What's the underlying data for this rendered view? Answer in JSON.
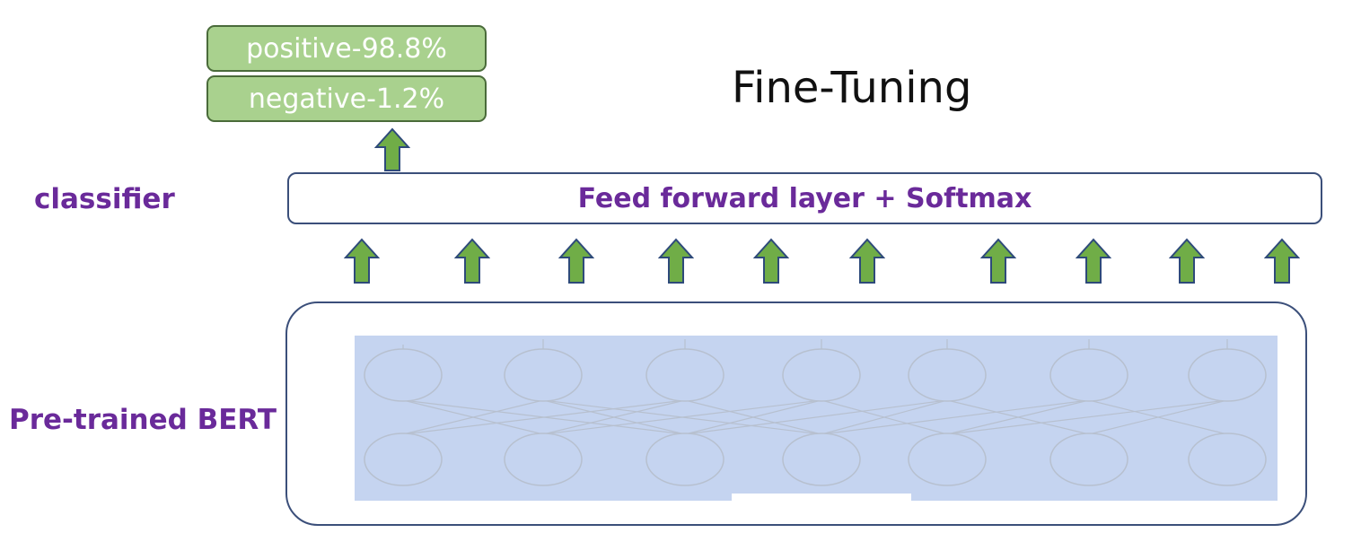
{
  "outputs": {
    "positive": "positive-98.8%",
    "negative": "negative-1.2%"
  },
  "title": "Fine-Tuning",
  "classifier": {
    "side_label": "classifier",
    "box_label": "Feed forward layer + Softmax"
  },
  "bert": {
    "side_label": "Pre-trained BERT"
  },
  "colors": {
    "output_fill": "#a9d18e",
    "arrow_fill": "#70ad47",
    "label_purple": "#6a2a9a",
    "network_fill": "#c5d4f0"
  }
}
